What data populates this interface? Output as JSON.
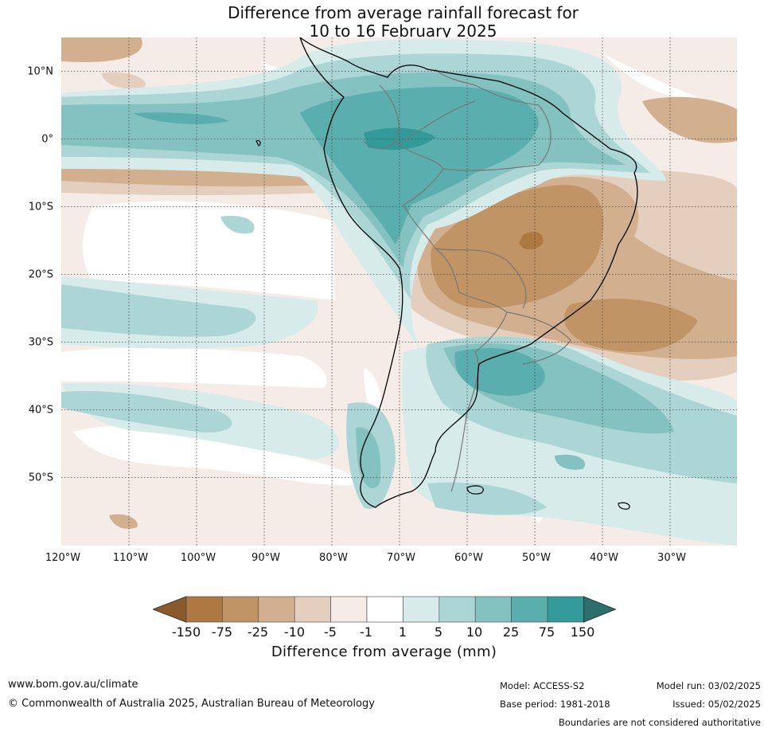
{
  "title": {
    "line1": "Difference from average rainfall forecast for",
    "line2": "10 to 16 February 2025"
  },
  "map": {
    "extent": {
      "lon_min": -120,
      "lon_max": -20,
      "lat_min": -60,
      "lat_max": 15
    },
    "latitude_labels": [
      "10°N",
      "0°",
      "10°S",
      "20°S",
      "30°S",
      "40°S",
      "50°S"
    ],
    "longitude_labels": [
      "120°W",
      "110°W",
      "100°W",
      "90°W",
      "80°W",
      "70°W",
      "60°W",
      "50°W",
      "40°W",
      "30°W"
    ],
    "gridlines": "dotted"
  },
  "colorbar": {
    "tick_labels": [
      "-150",
      "-75",
      "-25",
      "-10",
      "-5",
      "-1",
      "1",
      "5",
      "10",
      "25",
      "75",
      "150"
    ],
    "colors": [
      "#ad7841",
      "#c19466",
      "#d2b08f",
      "#e4cfbe",
      "#f5ece7",
      "#ffffff",
      "#d6ebea",
      "#acd6d5",
      "#83c2c1",
      "#5aaead",
      "#329b99",
      "#2d6f6c",
      "#8a5a2c"
    ],
    "label": "Difference from average (mm)"
  },
  "footer": {
    "website": "www.bom.gov.au/climate",
    "copyright": "© Commonwealth of Australia 2025, Australian Bureau of Meteorology",
    "model": "Model: ACCESS-S2",
    "base_period": "Base period: 1981-2018",
    "model_run": "Model run: 03/02/2025",
    "issued": "Issued: 05/02/2025",
    "disclaimer": "Boundaries are not considered authoritative"
  }
}
